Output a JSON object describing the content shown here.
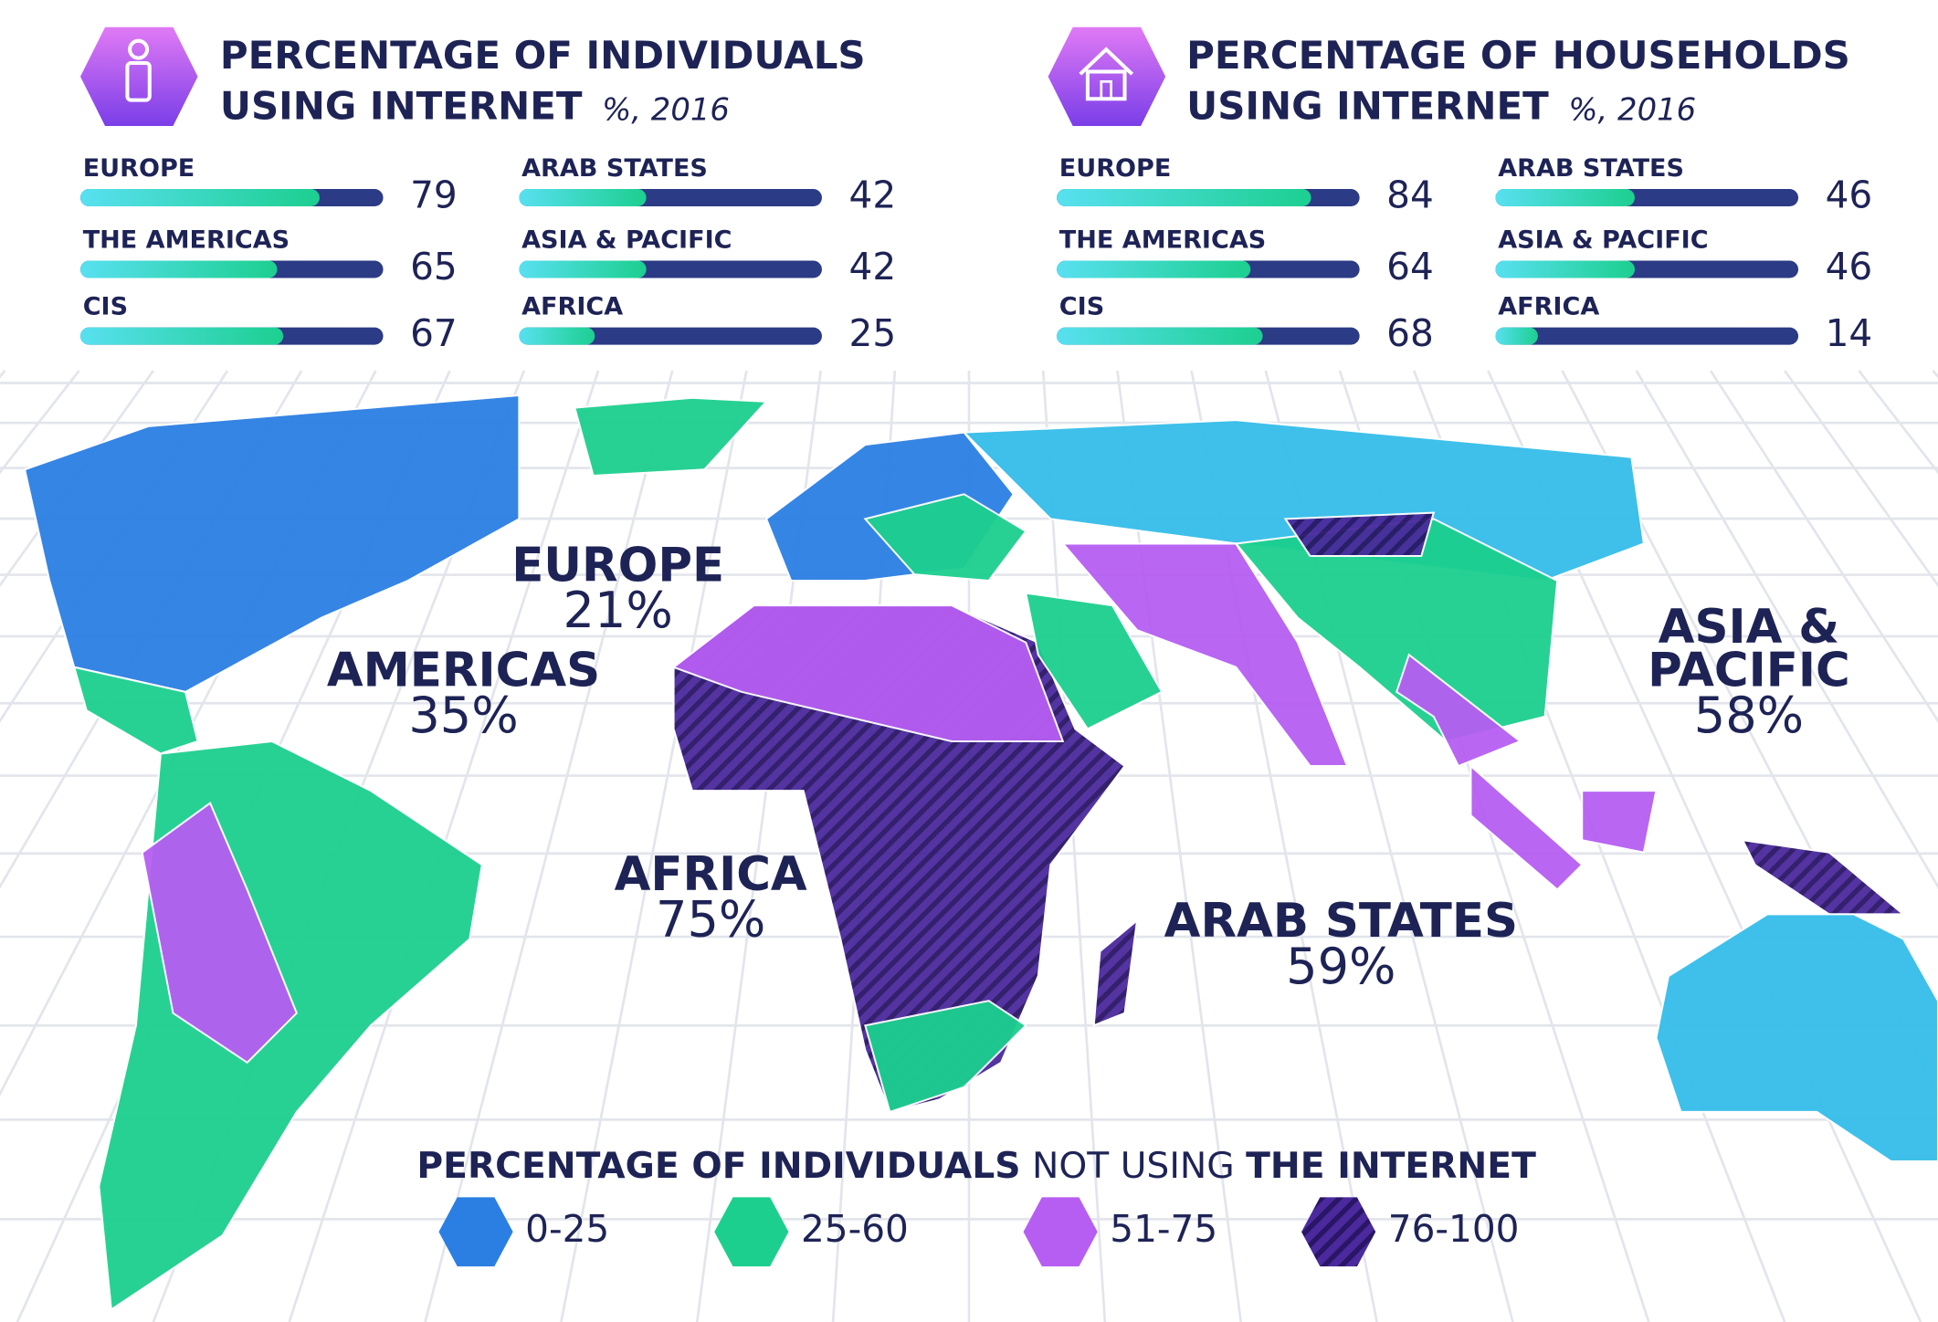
{
  "chart_data": [
    {
      "type": "bar",
      "title_lines": [
        "PERCENTAGE OF INDIVIDUALS",
        "USING INTERNET"
      ],
      "note": "%, 2016",
      "categories": [
        "EUROPE",
        "THE AMERICAS",
        "CIS",
        "ARAB STATES",
        "ASIA & PACIFIC",
        "AFRICA"
      ],
      "values": [
        79,
        65,
        67,
        42,
        42,
        25
      ],
      "xlim": [
        0,
        100
      ],
      "color": "#22d3b0",
      "track_color": "#2b3b85"
    },
    {
      "type": "bar",
      "title_lines": [
        "PERCENTAGE OF HOUSEHOLDS",
        "USING INTERNET"
      ],
      "note": "%, 2016",
      "categories": [
        "EUROPE",
        "THE AMERICAS",
        "CIS",
        "ARAB STATES",
        "ASIA & PACIFIC",
        "AFRICA"
      ],
      "values": [
        84,
        64,
        68,
        46,
        46,
        14
      ],
      "xlim": [
        0,
        100
      ],
      "color": "#22d3b0",
      "track_color": "#2b3b85"
    }
  ],
  "map": {
    "regions": [
      {
        "name_lines": [
          "EUROPE"
        ],
        "value": 21,
        "value_label": "21%"
      },
      {
        "name_lines": [
          "AMERICAS"
        ],
        "value": 35,
        "value_label": "35%"
      },
      {
        "name_lines": [
          "AFRICA"
        ],
        "value": 75,
        "value_label": "75%"
      },
      {
        "name_lines": [
          "ARAB STATES"
        ],
        "value": 59,
        "value_label": "59%"
      },
      {
        "name_lines": [
          "ASIA &",
          "PACIFIC"
        ],
        "value": 58,
        "value_label": "58%"
      }
    ],
    "legend_title": [
      "PERCENTAGE OF INDIVIDUALS",
      "NOT USING",
      "THE INTERNET"
    ],
    "legend": [
      {
        "label": "0-25",
        "color": "#2b7fe3"
      },
      {
        "label": "25-60",
        "color": "#1ccf8f"
      },
      {
        "label": "51-75",
        "color": "#b65ef2"
      },
      {
        "label": "76-100",
        "color": "#4a2a9c"
      }
    ]
  }
}
